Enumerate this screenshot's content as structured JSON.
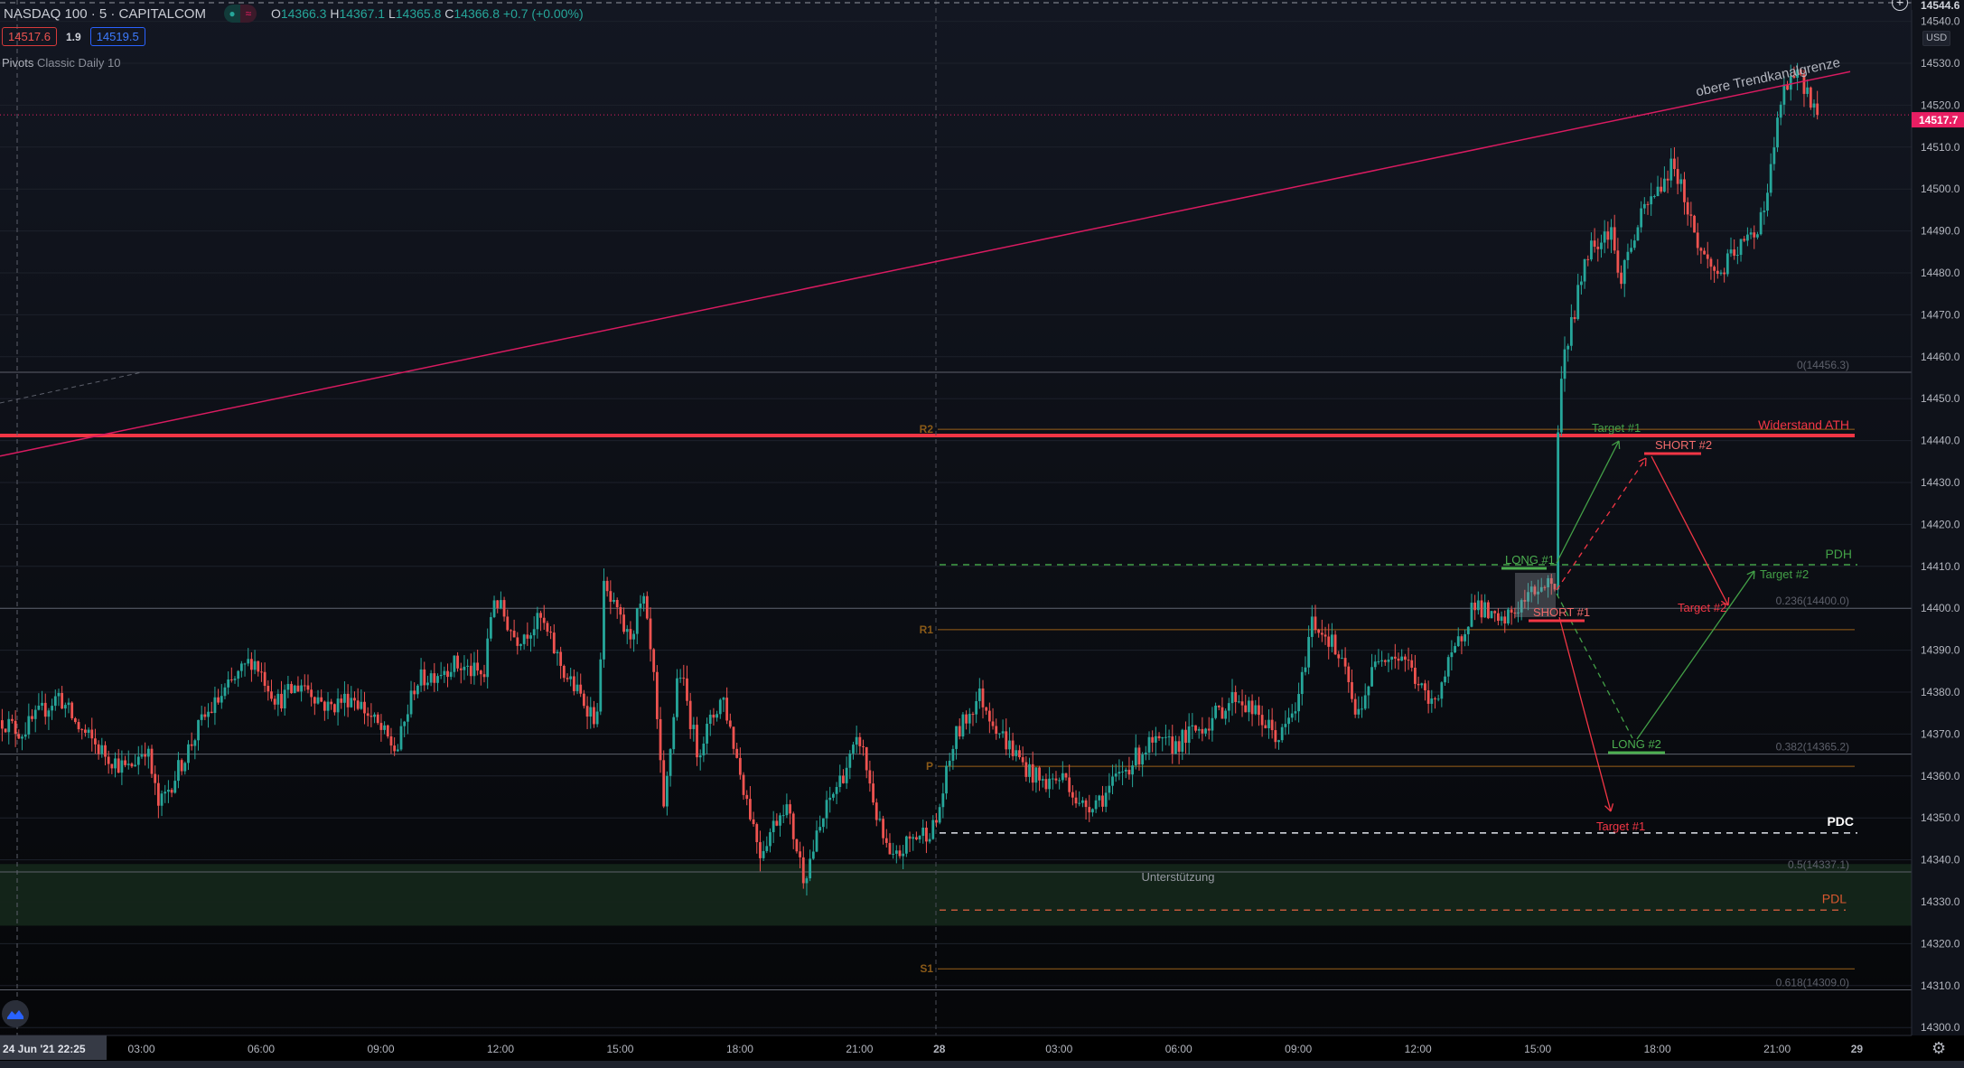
{
  "header": {
    "symbol": "NASDAQ 100 · 5 · CAPITALCOM",
    "ohlc": {
      "o_label": "O",
      "o": "14366.3",
      "h_label": "H",
      "h": "14367.1",
      "l_label": "L",
      "l": "14365.8",
      "c_label": "C",
      "c": "14366.8",
      "change": "+0.7 (+0.00%)"
    },
    "sell_price": "14517.6",
    "spread": "1.9",
    "buy_price": "14519.5",
    "indicator_name": "Pivots",
    "indicator_params": "Classic Daily 10"
  },
  "axis": {
    "currency": "USD",
    "crosshair_price": "14544.6",
    "last_price": "14517.7",
    "price_ticks": [
      "14300.0",
      "14310.0",
      "14320.0",
      "14330.0",
      "14340.0",
      "14350.0",
      "14360.0",
      "14370.0",
      "14380.0",
      "14390.0",
      "14400.0",
      "14410.0",
      "14420.0",
      "14430.0",
      "14440.0",
      "14450.0",
      "14460.0",
      "14470.0",
      "14480.0",
      "14490.0",
      "14500.0",
      "14510.0",
      "14520.0",
      "14530.0",
      "14540.0"
    ],
    "crosshair_time": "24 Jun '21   22:25",
    "time_ticks": [
      {
        "label": "03:00",
        "bar": 42
      },
      {
        "label": "06:00",
        "bar": 78
      },
      {
        "label": "09:00",
        "bar": 114
      },
      {
        "label": "12:00",
        "bar": 150
      },
      {
        "label": "15:00",
        "bar": 186
      },
      {
        "label": "18:00",
        "bar": 222
      },
      {
        "label": "21:00",
        "bar": 258
      },
      {
        "label": "28",
        "bar": 282
      },
      {
        "label": "03:00",
        "bar": 318
      },
      {
        "label": "06:00",
        "bar": 354
      },
      {
        "label": "09:00",
        "bar": 390
      },
      {
        "label": "12:00",
        "bar": 426
      },
      {
        "label": "15:00",
        "bar": 462
      },
      {
        "label": "18:00",
        "bar": 498
      },
      {
        "label": "21:00",
        "bar": 534
      },
      {
        "label": "29",
        "bar": 558
      }
    ]
  },
  "colors": {
    "up": "#26a69a",
    "down": "#ef5350",
    "accent": "#e91e63",
    "pivot": "#9a6019",
    "fib": "#5d606b",
    "zone": "#14261a"
  },
  "chart_data": {
    "type": "candlestick",
    "title": "NASDAQ 100 · 5 · CAPITALCOM",
    "ylim": [
      14296,
      14545
    ],
    "last_close": 14517.7,
    "price_path": [
      [
        0,
        14373.3
      ],
      [
        5.7,
        14370.3
      ],
      [
        17,
        14379.3
      ],
      [
        22.6,
        14371.8
      ],
      [
        30.1,
        14365.8
      ],
      [
        37.7,
        14361.3
      ],
      [
        43.3,
        14367.3
      ],
      [
        47.1,
        14352.4
      ],
      [
        52.8,
        14361.3
      ],
      [
        60.3,
        14373.3
      ],
      [
        75.4,
        14388.2
      ],
      [
        82.9,
        14377.8
      ],
      [
        90.4,
        14382.3
      ],
      [
        98,
        14376.3
      ],
      [
        105.5,
        14379.3
      ],
      [
        113,
        14371.8
      ],
      [
        118.7,
        14365.8
      ],
      [
        124.3,
        14382.3
      ],
      [
        135.6,
        14386.7
      ],
      [
        145,
        14383.8
      ],
      [
        147.7,
        14403.2
      ],
      [
        154.5,
        14392.7
      ],
      [
        162,
        14397.2
      ],
      [
        169.6,
        14383.8
      ],
      [
        179,
        14373.3
      ],
      [
        180.9,
        14404.7
      ],
      [
        188.4,
        14392.7
      ],
      [
        192.9,
        14401.7
      ],
      [
        195.9,
        14383.8
      ],
      [
        199,
        14350.9
      ],
      [
        203.5,
        14386.7
      ],
      [
        209.1,
        14365.8
      ],
      [
        216.7,
        14379.3
      ],
      [
        222.3,
        14359.8
      ],
      [
        228,
        14341.9
      ],
      [
        235.5,
        14353.9
      ],
      [
        241.2,
        14335.9
      ],
      [
        248.7,
        14353.9
      ],
      [
        258.1,
        14368.8
      ],
      [
        263.8,
        14347.9
      ],
      [
        267.5,
        14338.9
      ],
      [
        273.2,
        14344.9
      ],
      [
        280.7,
        14347.9
      ],
      [
        286.4,
        14368.8
      ],
      [
        293.9,
        14379.3
      ],
      [
        301.4,
        14368.8
      ],
      [
        307.1,
        14362.8
      ],
      [
        312.7,
        14358.3
      ],
      [
        320.3,
        14359.8
      ],
      [
        324,
        14352.4
      ],
      [
        331.6,
        14355.4
      ],
      [
        337.2,
        14361.3
      ],
      [
        344.8,
        14367.3
      ],
      [
        352.3,
        14367.3
      ],
      [
        363.6,
        14373.3
      ],
      [
        371.1,
        14379.3
      ],
      [
        378.7,
        14373.3
      ],
      [
        384.3,
        14368.8
      ],
      [
        390,
        14377.8
      ],
      [
        393.8,
        14397.2
      ],
      [
        399.4,
        14392.7
      ],
      [
        405.1,
        14382.3
      ],
      [
        406.9,
        14373.3
      ],
      [
        414.5,
        14389.7
      ],
      [
        422,
        14388.2
      ],
      [
        429.6,
        14376.3
      ],
      [
        437.1,
        14389.7
      ],
      [
        442.7,
        14401.7
      ],
      [
        450.3,
        14395.7
      ],
      [
        455.9,
        14400.2
      ],
      [
        463.5,
        14406.2
      ],
      [
        467.2,
        14405.6
      ],
      [
        468,
        14440.5
      ],
      [
        469.1,
        14458.4
      ],
      [
        472.9,
        14470.4
      ],
      [
        476.6,
        14485.3
      ],
      [
        484.2,
        14491.3
      ],
      [
        486.1,
        14477.9
      ],
      [
        493.6,
        14494.3
      ],
      [
        503,
        14506.3
      ],
      [
        510.6,
        14485.3
      ],
      [
        516.2,
        14479.4
      ],
      [
        521.9,
        14485.3
      ],
      [
        527.5,
        14489.8
      ],
      [
        531.3,
        14500.3
      ],
      [
        535,
        14521.2
      ],
      [
        538.8,
        14527.2
      ],
      [
        542.6,
        14524.2
      ],
      [
        546.4,
        14517.7
      ]
    ],
    "pivots": [
      {
        "label": "R2",
        "price": 14442.7
      },
      {
        "label": "R1",
        "price": 14394.9
      },
      {
        "label": "P",
        "price": 14362.3
      },
      {
        "label": "S1",
        "price": 14314.0
      }
    ],
    "fib_levels": [
      {
        "label": "0(14456.3)",
        "price": 14456.3
      },
      {
        "label": "0.236(14400.0)",
        "price": 14400.0
      },
      {
        "label": "0.382(14365.2)",
        "price": 14365.2
      },
      {
        "label": "0.5(14337.1)",
        "price": 14337.1
      },
      {
        "label": "0.618(14309.0)",
        "price": 14309.0
      }
    ],
    "annotations": {
      "resistance": {
        "label": "Widerstand ATH",
        "price": 14441.2
      },
      "pdh": {
        "label": "PDH",
        "price": 14410.4
      },
      "pdc": {
        "label": "PDC",
        "price": 14346.4
      },
      "pdl": {
        "label": "PDL",
        "price": 14328.0
      },
      "support_zone": {
        "label": "Unterstützung",
        "top": 14339.0,
        "bottom": 14324.3
      },
      "trendline": {
        "label": "obere Trendkanalgrenze",
        "start_price": 14436.3,
        "end_price": 14528.0
      },
      "long1": "LONG #1",
      "short1": "SHORT #1",
      "long2": "LONG #2",
      "short2": "SHORT #2",
      "target1_long": "Target #1",
      "target2_long": "Target #2",
      "target1_short": "Target #1",
      "target2_short": "Target #2"
    }
  }
}
